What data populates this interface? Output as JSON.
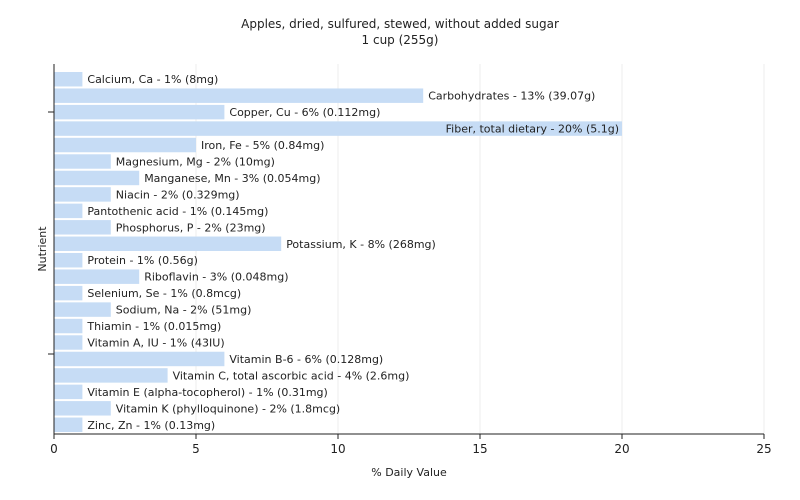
{
  "chart_data": {
    "type": "bar",
    "orientation": "horizontal",
    "title": "Apples, dried, sulfured, stewed, without added sugar",
    "subtitle": "1 cup (255g)",
    "xlabel": "% Daily Value",
    "ylabel": "Nutrient",
    "xlim": [
      0,
      25
    ],
    "xticks": [
      0,
      5,
      10,
      15,
      20,
      25
    ],
    "grid": true,
    "bar_color": "#c6dcf5",
    "categories": [
      "Calcium, Ca",
      "Carbohydrates",
      "Copper, Cu",
      "Fiber, total dietary",
      "Iron, Fe",
      "Magnesium, Mg",
      "Manganese, Mn",
      "Niacin",
      "Pantothenic acid",
      "Phosphorus, P",
      "Potassium, K",
      "Protein",
      "Riboflavin",
      "Selenium, Se",
      "Sodium, Na",
      "Thiamin",
      "Vitamin A, IU",
      "Vitamin B-6",
      "Vitamin C, total ascorbic acid",
      "Vitamin E (alpha-tocopherol)",
      "Vitamin K (phylloquinone)",
      "Zinc, Zn"
    ],
    "values": [
      1,
      13,
      6,
      20,
      5,
      2,
      3,
      2,
      1,
      2,
      8,
      1,
      3,
      1,
      2,
      1,
      1,
      6,
      4,
      1,
      2,
      1
    ],
    "labels": [
      "Calcium, Ca - 1% (8mg)",
      "Carbohydrates - 13% (39.07g)",
      "Copper, Cu - 6% (0.112mg)",
      "Fiber, total dietary - 20% (5.1g)",
      "Iron, Fe - 5% (0.84mg)",
      "Magnesium, Mg - 2% (10mg)",
      "Manganese, Mn - 3% (0.054mg)",
      "Niacin - 2% (0.329mg)",
      "Pantothenic acid - 1% (0.145mg)",
      "Phosphorus, P - 2% (23mg)",
      "Potassium, K - 8% (268mg)",
      "Protein - 1% (0.56g)",
      "Riboflavin - 3% (0.048mg)",
      "Selenium, Se - 1% (0.8mcg)",
      "Sodium, Na - 2% (51mg)",
      "Thiamin - 1% (0.015mg)",
      "Vitamin A, IU - 1% (43IU)",
      "Vitamin B-6 - 6% (0.128mg)",
      "Vitamin C, total ascorbic acid - 4% (2.6mg)",
      "Vitamin E (alpha-tocopherol) - 1% (0.31mg)",
      "Vitamin K (phylloquinone) - 2% (1.8mcg)",
      "Zinc, Zn - 1% (0.13mg)"
    ]
  }
}
